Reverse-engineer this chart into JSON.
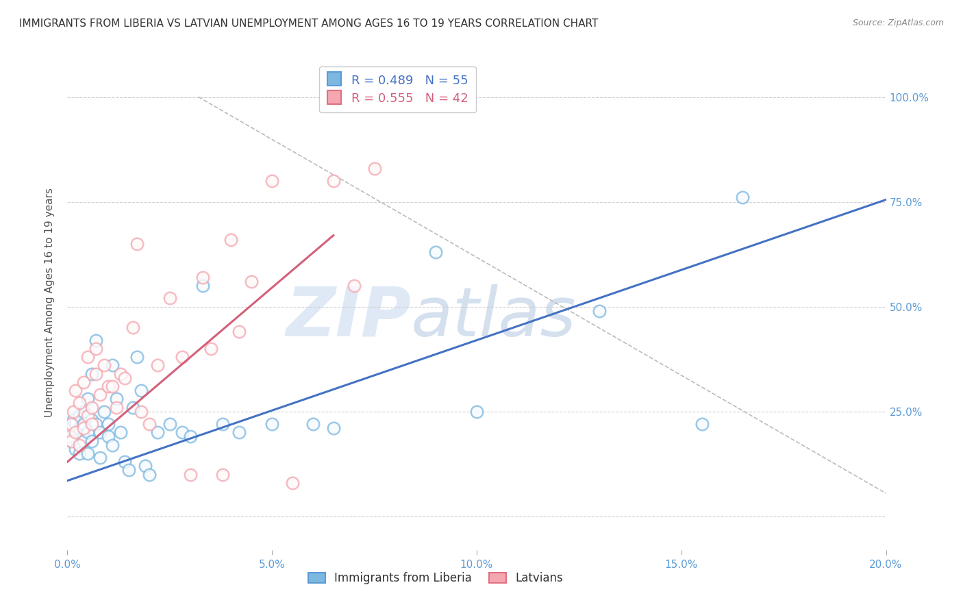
{
  "title": "IMMIGRANTS FROM LIBERIA VS LATVIAN UNEMPLOYMENT AMONG AGES 16 TO 19 YEARS CORRELATION CHART",
  "source": "Source: ZipAtlas.com",
  "ylabel": "Unemployment Among Ages 16 to 19 years",
  "xlim": [
    0.0,
    0.2
  ],
  "ylim": [
    -0.08,
    1.1
  ],
  "yticks": [
    0.0,
    0.25,
    0.5,
    0.75,
    1.0
  ],
  "ytick_labels": [
    "",
    "25.0%",
    "50.0%",
    "75.0%",
    "100.0%"
  ],
  "xticks": [
    0.0,
    0.05,
    0.1,
    0.15,
    0.2
  ],
  "xtick_labels": [
    "0.0%",
    "5.0%",
    "10.0%",
    "15.0%",
    "20.0%"
  ],
  "blue_color": "#7db8e0",
  "pink_color": "#f4a7b0",
  "blue_edge_color": "#5b9bd5",
  "pink_edge_color": "#e07080",
  "blue_label": "Immigrants from Liberia",
  "pink_label": "Latvians",
  "legend_r_blue": "R = 0.489",
  "legend_n_blue": "N = 55",
  "legend_r_pink": "R = 0.555",
  "legend_n_pink": "N = 42",
  "blue_scatter_x": [
    0.0005,
    0.001,
    0.001,
    0.0015,
    0.002,
    0.002,
    0.002,
    0.0025,
    0.003,
    0.003,
    0.003,
    0.003,
    0.004,
    0.004,
    0.004,
    0.004,
    0.005,
    0.005,
    0.005,
    0.006,
    0.006,
    0.006,
    0.007,
    0.007,
    0.008,
    0.008,
    0.009,
    0.01,
    0.01,
    0.011,
    0.011,
    0.012,
    0.013,
    0.014,
    0.015,
    0.016,
    0.017,
    0.018,
    0.019,
    0.02,
    0.022,
    0.025,
    0.028,
    0.03,
    0.033,
    0.038,
    0.042,
    0.05,
    0.06,
    0.065,
    0.09,
    0.1,
    0.13,
    0.155,
    0.165
  ],
  "blue_scatter_y": [
    0.2,
    0.21,
    0.18,
    0.23,
    0.19,
    0.22,
    0.16,
    0.2,
    0.17,
    0.21,
    0.24,
    0.15,
    0.19,
    0.22,
    0.25,
    0.18,
    0.2,
    0.28,
    0.15,
    0.23,
    0.18,
    0.34,
    0.22,
    0.42,
    0.2,
    0.14,
    0.25,
    0.19,
    0.22,
    0.36,
    0.17,
    0.28,
    0.2,
    0.13,
    0.11,
    0.26,
    0.38,
    0.3,
    0.12,
    0.1,
    0.2,
    0.22,
    0.2,
    0.19,
    0.55,
    0.22,
    0.2,
    0.22,
    0.22,
    0.21,
    0.63,
    0.25,
    0.49,
    0.22,
    0.76
  ],
  "pink_scatter_x": [
    0.0005,
    0.001,
    0.001,
    0.0015,
    0.002,
    0.002,
    0.003,
    0.003,
    0.004,
    0.004,
    0.005,
    0.005,
    0.006,
    0.006,
    0.007,
    0.007,
    0.008,
    0.009,
    0.01,
    0.011,
    0.012,
    0.013,
    0.014,
    0.016,
    0.017,
    0.018,
    0.02,
    0.022,
    0.025,
    0.028,
    0.03,
    0.033,
    0.035,
    0.038,
    0.04,
    0.042,
    0.045,
    0.05,
    0.055,
    0.065,
    0.07,
    0.075
  ],
  "pink_scatter_y": [
    0.19,
    0.22,
    0.18,
    0.25,
    0.2,
    0.3,
    0.17,
    0.27,
    0.21,
    0.32,
    0.24,
    0.38,
    0.22,
    0.26,
    0.34,
    0.4,
    0.29,
    0.36,
    0.31,
    0.31,
    0.26,
    0.34,
    0.33,
    0.45,
    0.65,
    0.25,
    0.22,
    0.36,
    0.52,
    0.38,
    0.1,
    0.57,
    0.4,
    0.1,
    0.66,
    0.44,
    0.56,
    0.8,
    0.08,
    0.8,
    0.55,
    0.83
  ],
  "blue_line_x": [
    0.0,
    0.2
  ],
  "blue_line_y": [
    0.085,
    0.755
  ],
  "pink_line_x": [
    0.0,
    0.065
  ],
  "pink_line_y": [
    0.13,
    0.67
  ],
  "diag_line_x": [
    0.032,
    0.2
  ],
  "diag_line_y": [
    1.0,
    0.055
  ],
  "watermark_zip": "ZIP",
  "watermark_atlas": "atlas",
  "background_color": "#ffffff",
  "grid_color": "#cccccc",
  "axis_label_color": "#5b9bd5",
  "title_color": "#333333",
  "source_color": "#888888",
  "ylabel_color": "#555555"
}
